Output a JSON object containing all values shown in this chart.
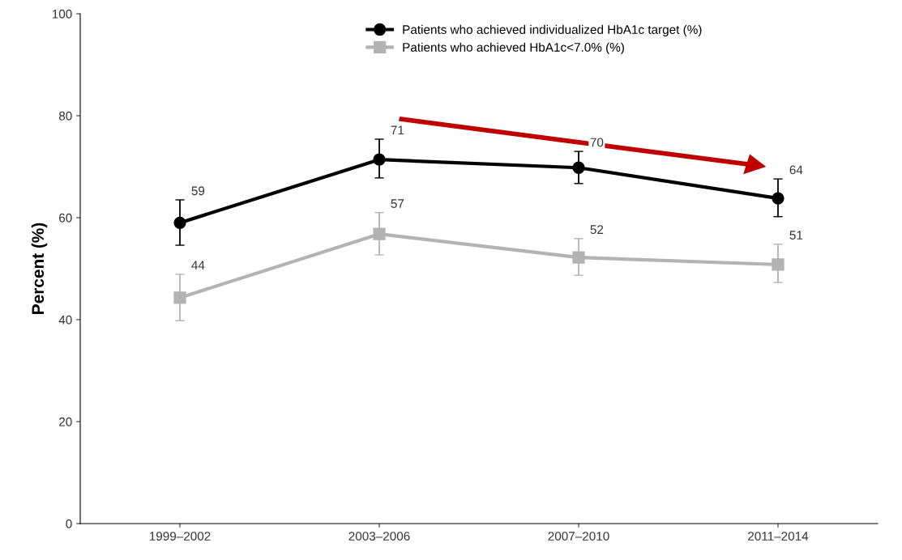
{
  "chart_data": {
    "type": "line",
    "ylabel": "Percent (%)",
    "categories": [
      "1999–2002",
      "2003–2006",
      "2007–2010",
      "2011–2014"
    ],
    "series": [
      {
        "name": "Patients who achieved individualized HbA1c target (%)",
        "color": "#000000",
        "marker": "circle",
        "values": [
          59.0,
          71.4,
          69.8,
          63.8
        ],
        "errors": [
          [
            54.6,
            63.5
          ],
          [
            67.8,
            75.4
          ],
          [
            66.7,
            73.0
          ],
          [
            60.2,
            67.6
          ]
        ],
        "value_labels": [
          "59",
          "71",
          "70",
          "64"
        ]
      },
      {
        "name": "Patients who achieved HbA1c<7.0% (%)",
        "color": "#b3b3b3",
        "marker": "square",
        "values": [
          44.3,
          56.8,
          52.2,
          50.8
        ],
        "errors": [
          [
            39.8,
            48.9
          ],
          [
            52.7,
            61.0
          ],
          [
            48.7,
            55.9
          ],
          [
            47.3,
            54.8
          ]
        ],
        "value_labels": [
          "44",
          "57",
          "52",
          "51"
        ]
      }
    ],
    "ylim": [
      0,
      100
    ],
    "yticks": [
      0,
      20,
      40,
      60,
      80,
      100
    ],
    "grid": false,
    "legend": "top",
    "line_style": "solid"
  }
}
